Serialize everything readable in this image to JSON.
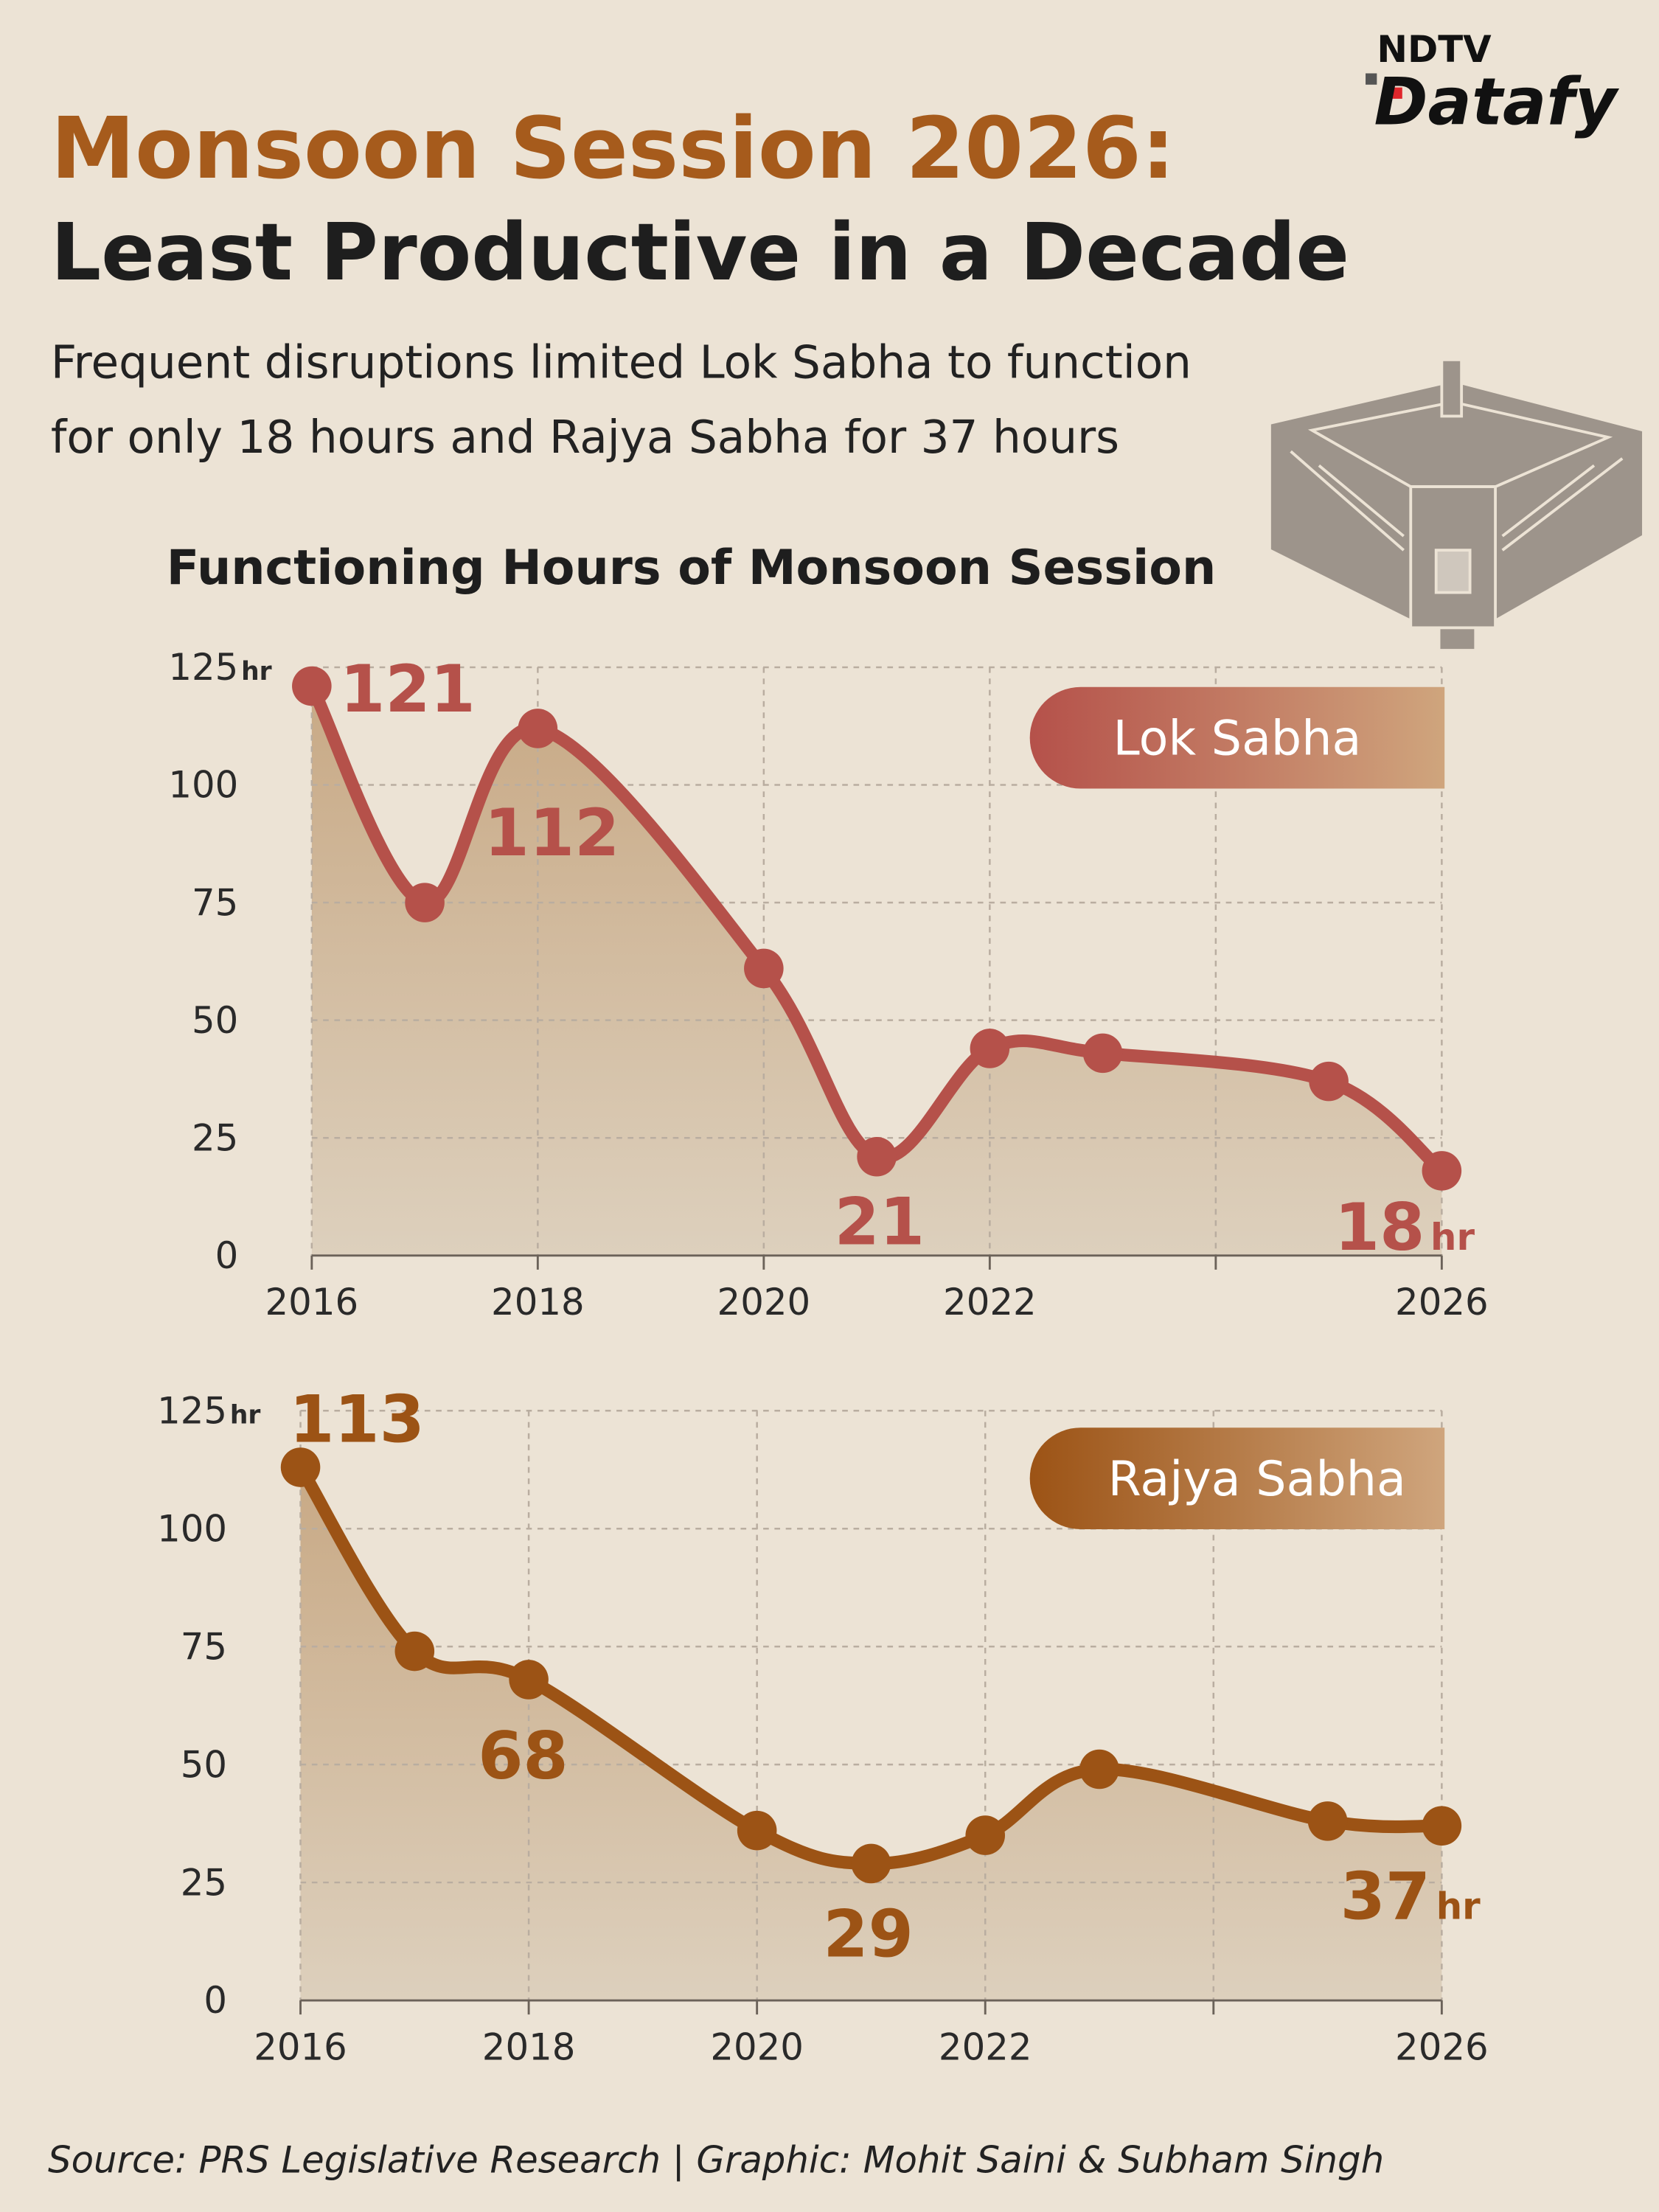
{
  "header": {
    "title": [
      "Monsoon Session 2026:",
      "Least Productive in a Decade"
    ],
    "subtitle": [
      "Frequent disruptions limited Lok Sabha to function",
      "for only 18 hours and Rajya Sabha for 37 hours"
    ],
    "logo": {
      "brand": "NDTV",
      "product": "Datafy"
    }
  },
  "chart_heading": "Functioning Hours of Monsoon Session",
  "chart_data": [
    {
      "type": "line",
      "area": true,
      "grid": true,
      "unit": "hr",
      "x": [
        2016,
        2017,
        2018,
        2020,
        2021,
        2022,
        2023,
        2025,
        2026
      ],
      "series": [
        {
          "name": "Lok Sabha",
          "color": "#b5514a",
          "values": [
            121,
            75,
            112,
            61,
            21,
            44,
            43,
            37,
            18
          ]
        }
      ],
      "xlim": [
        2016,
        2026
      ],
      "ylim": [
        0,
        125
      ],
      "xticks": [
        2016,
        2018,
        2020,
        2022,
        {
          "value": 2024,
          "label": null
        },
        2026
      ],
      "yticks": [
        0,
        25,
        50,
        75,
        100,
        125
      ]
    },
    {
      "type": "line",
      "area": true,
      "grid": true,
      "unit": "hr",
      "x": [
        2016,
        2017,
        2018,
        2020,
        2021,
        2022,
        2023,
        2025,
        2026
      ],
      "series": [
        {
          "name": "Rajya Sabha",
          "color": "#9c5315",
          "values": [
            113,
            74,
            68,
            36,
            29,
            35,
            49,
            38,
            37
          ]
        }
      ],
      "xlim": [
        2016,
        2026
      ],
      "ylim": [
        0,
        125
      ],
      "xticks": [
        2016,
        2018,
        2020,
        2022,
        {
          "value": 2024,
          "label": null
        },
        2026
      ],
      "yticks": [
        0,
        25,
        50,
        75,
        100,
        125
      ]
    }
  ],
  "source": "Source: PRS Legislative Research | Graphic: Mohit Saini & Subham Singh"
}
